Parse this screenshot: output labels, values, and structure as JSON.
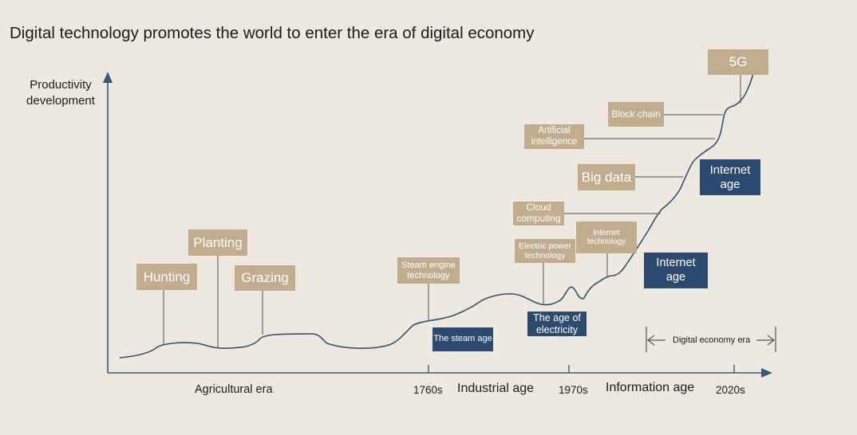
{
  "title": "Digital technology promotes the world to enter the era of digital economy",
  "y_axis_label": "Productivity development",
  "tech_labels": {
    "hunting": "Hunting",
    "planting": "Planting",
    "grazing": "Grazing",
    "steam_engine": "Steam engine technology",
    "electric_power": "Electric power technology",
    "cloud_computing": "Cloud computing",
    "internet_technology": "Internet technology",
    "big_data": "Big data",
    "artificial_intelligence": "Artificial intelligence",
    "block_chain": "Block chain",
    "five_g": "5G"
  },
  "age_labels": {
    "steam_age": "The steam age",
    "electricity_age": "The age of electricity",
    "internet_age_1": "Internet age",
    "internet_age_2": "Internet age"
  },
  "x_axis": {
    "eras": [
      "Agricultural era",
      "Industrial age",
      "Information age"
    ],
    "ticks": [
      "1760s",
      "1970s",
      "2020s"
    ]
  },
  "digital_economy_era": "Digital economy era",
  "colors": {
    "background": "#ede9e0",
    "tan_box": "#c1ad8e",
    "navy_box": "#2b4a6e",
    "axis": "#3c5878",
    "curve": "#33506f",
    "connector": "#6b6b6b"
  }
}
